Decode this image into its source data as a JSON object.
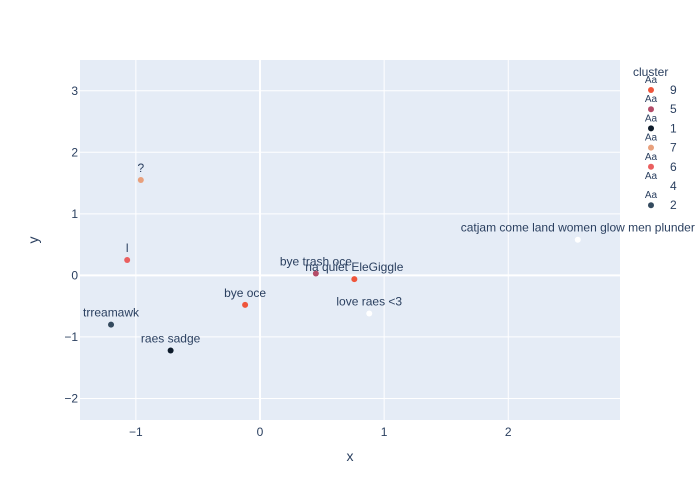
{
  "chart_data": {
    "type": "scatter",
    "xlabel": "x",
    "ylabel": "y",
    "xlim": [
      -1.45,
      2.9
    ],
    "ylim": [
      -2.35,
      3.5
    ],
    "xticks": [
      -1,
      0,
      1,
      2
    ],
    "yticks": [
      -2,
      -1,
      0,
      1,
      2,
      3
    ],
    "tick_labels_x": [
      "−1",
      "0",
      "1",
      "2"
    ],
    "tick_labels_y": [
      "−2",
      "−1",
      "0",
      "1",
      "2",
      "3"
    ],
    "grid": true,
    "background": "#e5ecf6",
    "legend": {
      "title": "cluster",
      "placement": "right",
      "entries": [
        {
          "name": "9",
          "color": "#ef553b"
        },
        {
          "name": "5",
          "color": "#b44c68"
        },
        {
          "name": "1",
          "color": "#0d1b2a"
        },
        {
          "name": "7",
          "color": "#e8a07c"
        },
        {
          "name": "6",
          "color": "#ea5f5f"
        },
        {
          "name": "4",
          "color": "#ffffff"
        },
        {
          "name": "2",
          "color": "#344a5e"
        }
      ],
      "symbol_text": "Aa"
    },
    "points": [
      {
        "x": -0.96,
        "y": 1.55,
        "label": "?",
        "cluster": "7"
      },
      {
        "x": -1.07,
        "y": 0.25,
        "label": "l",
        "cluster": "6"
      },
      {
        "x": -1.2,
        "y": -0.8,
        "label": "trreamawk",
        "cluster": "2"
      },
      {
        "x": -0.72,
        "y": -1.22,
        "label": "raes sadge",
        "cluster": "1"
      },
      {
        "x": -0.12,
        "y": -0.48,
        "label": "bye oce",
        "cluster": "9"
      },
      {
        "x": 0.45,
        "y": 0.03,
        "label": "bye trash oce",
        "cluster": "5"
      },
      {
        "x": 0.76,
        "y": -0.06,
        "label": "na quiet EleGiggle",
        "cluster": "9"
      },
      {
        "x": 0.88,
        "y": -0.62,
        "label": "love raes <3",
        "cluster": "4"
      },
      {
        "x": 2.56,
        "y": 0.58,
        "label": "catjam come land women glow men plunder",
        "cluster": "4"
      }
    ]
  }
}
